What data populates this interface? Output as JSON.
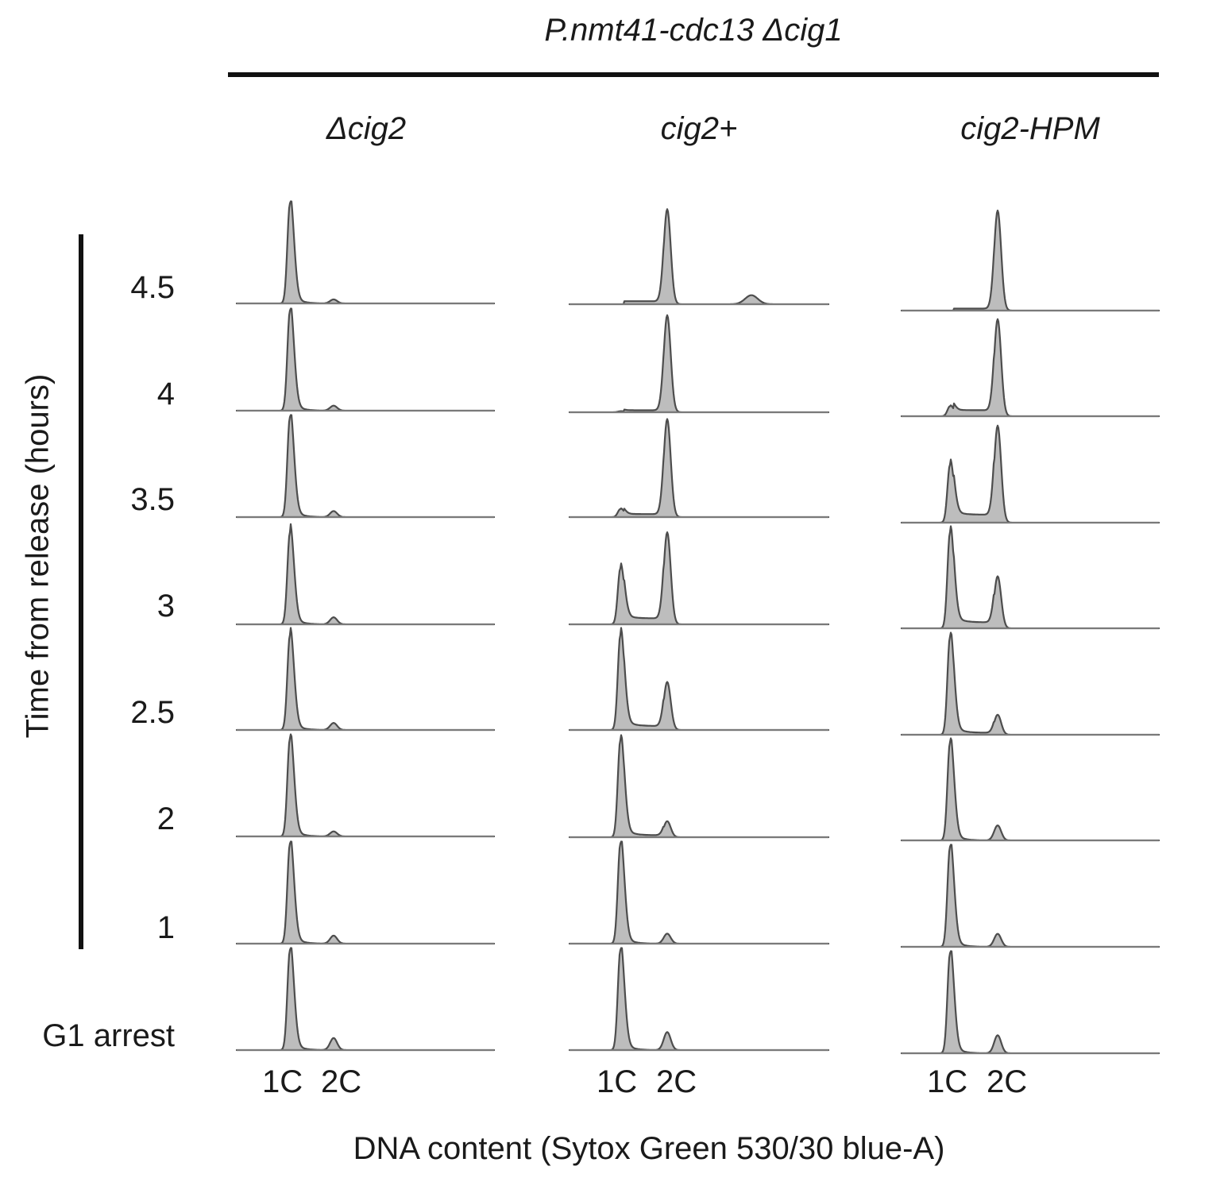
{
  "chart_data": {
    "type": "area",
    "title": "P.nmt41-cdc13 Δcig1",
    "xlabel": "DNA content (Sytox Green 530/30 blue-A)",
    "ylabel": "Time from release (hours)",
    "x_ticks": [
      "1C",
      "2C"
    ],
    "row_labels": [
      "4.5",
      "4",
      "3.5",
      "3",
      "2.5",
      "2",
      "1",
      "G1 arrest"
    ],
    "fill_color": "#bdbdbd",
    "line_color": "#4d4d4d",
    "panels": [
      {
        "name": "Δcig2",
        "rows": [
          {
            "time": "4.5",
            "peak_1C": 1.0,
            "peak_2C": 0.04,
            "s_phase": 0.0
          },
          {
            "time": "4",
            "peak_1C": 1.0,
            "peak_2C": 0.05,
            "s_phase": 0.0
          },
          {
            "time": "3.5",
            "peak_1C": 1.0,
            "peak_2C": 0.06,
            "s_phase": 0.0
          },
          {
            "time": "3",
            "peak_1C": 0.92,
            "peak_2C": 0.07,
            "s_phase": 0.0
          },
          {
            "time": "2.5",
            "peak_1C": 0.95,
            "peak_2C": 0.07,
            "s_phase": 0.0
          },
          {
            "time": "2",
            "peak_1C": 0.98,
            "peak_2C": 0.05,
            "s_phase": 0.0
          },
          {
            "time": "1",
            "peak_1C": 1.0,
            "peak_2C": 0.08,
            "s_phase": 0.0
          },
          {
            "time": "G1 arrest",
            "peak_1C": 1.0,
            "peak_2C": 0.12,
            "s_phase": 0.0
          }
        ]
      },
      {
        "name": "cig2+",
        "rows": [
          {
            "time": "4.5",
            "peak_1C": 0.0,
            "peak_2C": 0.95,
            "s_phase": 0.03,
            "peak_4C": 0.09
          },
          {
            "time": "4",
            "peak_1C": 0.01,
            "peak_2C": 0.97,
            "s_phase": 0.02
          },
          {
            "time": "3.5",
            "peak_1C": 0.08,
            "peak_2C": 0.98,
            "s_phase": 0.03
          },
          {
            "time": "3",
            "peak_1C": 0.56,
            "peak_2C": 0.92,
            "s_phase": 0.06
          },
          {
            "time": "2.5",
            "peak_1C": 0.95,
            "peak_2C": 0.48,
            "s_phase": 0.04
          },
          {
            "time": "2",
            "peak_1C": 0.97,
            "peak_2C": 0.16,
            "s_phase": 0.02
          },
          {
            "time": "1",
            "peak_1C": 1.0,
            "peak_2C": 0.1,
            "s_phase": 0.0
          },
          {
            "time": "G1 arrest",
            "peak_1C": 1.0,
            "peak_2C": 0.18,
            "s_phase": 0.0
          }
        ]
      },
      {
        "name": "cig2-HPM",
        "rows": [
          {
            "time": "4.5",
            "peak_1C": 0.0,
            "peak_2C": 1.0,
            "s_phase": 0.02
          },
          {
            "time": "4",
            "peak_1C": 0.1,
            "peak_2C": 0.97,
            "s_phase": 0.06
          },
          {
            "time": "3.5",
            "peak_1C": 0.58,
            "peak_2C": 0.97,
            "s_phase": 0.08
          },
          {
            "time": "3",
            "peak_1C": 0.96,
            "peak_2C": 0.52,
            "s_phase": 0.06
          },
          {
            "time": "2.5",
            "peak_1C": 0.98,
            "peak_2C": 0.2,
            "s_phase": 0.02
          },
          {
            "time": "2",
            "peak_1C": 0.98,
            "peak_2C": 0.15,
            "s_phase": 0.0
          },
          {
            "time": "1",
            "peak_1C": 1.0,
            "peak_2C": 0.13,
            "s_phase": 0.0
          },
          {
            "time": "G1 arrest",
            "peak_1C": 1.0,
            "peak_2C": 0.18,
            "s_phase": 0.0
          }
        ]
      }
    ]
  }
}
